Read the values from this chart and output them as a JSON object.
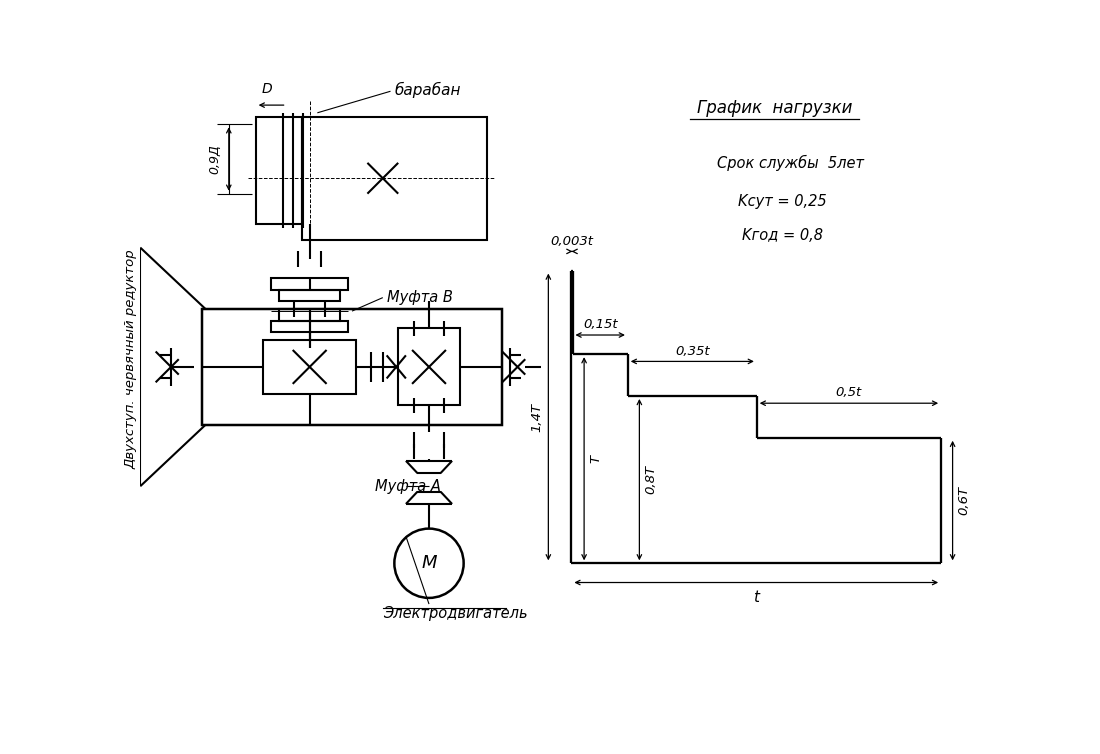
{
  "bg_color": "#ffffff",
  "line_color": "#000000",
  "lw": 1.5,
  "font_size": 10,
  "left_label": "Двухступ. червячный редуктор",
  "motor_label": "Электродвигатель",
  "muftaA_label": "Муфта A",
  "muftaB_label": "Муфта B",
  "drum_label": "барабан",
  "D_label": "D",
  "size_label": "0,9Д",
  "M_label": "M",
  "graph_title": "График  нагрузки",
  "service_life": "Срок службы  5лет",
  "k_sut": "Kсут = 0,25",
  "k_god": "Kгод = 0,8",
  "t_label": "t",
  "label_003t": "0,003t",
  "label_015t": "0,15t",
  "label_035t": "0,35t",
  "label_05t": "0,5t",
  "label_T": "T",
  "label_08T": "0,8T",
  "label_14T": "1,4T",
  "label_06T": "0,6T"
}
